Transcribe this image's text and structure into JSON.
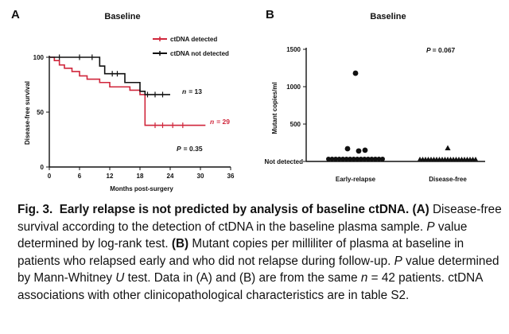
{
  "colors": {
    "detected": "#d0263b",
    "not_detected": "#111111"
  },
  "panelA": {
    "letter": "A",
    "title": "Baseline",
    "ylabel": "Disease-free survival",
    "xlabel": "Months post-surgery",
    "legend_detected": "ctDNA detected",
    "legend_not_detected": "ctDNA not detected",
    "n_not_detected_label": "n",
    "n_not_detected_value": "= 13",
    "n_detected_label": "n",
    "n_detected_value": "= 29",
    "p_label": "P",
    "p_value": "= 0.35"
  },
  "panelB": {
    "letter": "B",
    "title": "Baseline",
    "ylabel": "Mutant copies/ml",
    "p_label": "P",
    "p_value": "= 0.067",
    "not_detected_label": "Not detected"
  },
  "chart_data": [
    {
      "type": "line",
      "title": "Baseline",
      "xlabel": "Months post-surgery",
      "ylabel": "Disease-free survival",
      "xlim": [
        0,
        36
      ],
      "ylim": [
        0,
        100
      ],
      "xticks": [
        "0",
        "6",
        "12",
        "18",
        "24",
        "30",
        "36"
      ],
      "yticks": [
        "0",
        "50",
        "100"
      ],
      "series": [
        {
          "name": "ctDNA detected",
          "step_x": [
            0,
            1,
            2,
            3,
            4.5,
            6,
            7.5,
            10,
            12,
            16,
            18,
            19,
            20,
            31
          ],
          "step_y": [
            100,
            97,
            93,
            90,
            87,
            83,
            80,
            77,
            73,
            70,
            66,
            38,
            38,
            38
          ],
          "censored_x": [
            21,
            22.5,
            24.5,
            26.5
          ]
        },
        {
          "name": "ctDNA not detected",
          "step_x": [
            0,
            10,
            11,
            15,
            18,
            19,
            24
          ],
          "step_y": [
            100,
            92,
            85,
            77,
            69,
            66,
            66
          ],
          "censored_x": [
            2,
            6,
            8.5,
            12.5,
            13.5,
            19.5,
            21,
            22.5
          ]
        }
      ]
    },
    {
      "type": "scatter",
      "title": "Baseline",
      "ylabel": "Mutant copies/ml",
      "categories": [
        "Early-relapse",
        "Disease-free"
      ],
      "yticks": [
        "500",
        "1000",
        "1500"
      ],
      "ylim": [
        0,
        1500
      ],
      "series": [
        {
          "name": "Early-relapse",
          "values": [
            1180,
            170,
            140,
            150,
            0,
            0,
            0,
            0,
            0,
            0,
            0,
            0,
            0,
            0,
            0,
            0,
            0,
            0,
            0,
            0
          ]
        },
        {
          "name": "Disease-free",
          "values": [
            180,
            0,
            0,
            0,
            0,
            0,
            0,
            0,
            0,
            0,
            0,
            0,
            0,
            0,
            0,
            0,
            0,
            0,
            0,
            0,
            0,
            0
          ]
        }
      ]
    }
  ],
  "caption": {
    "fig_label": "Fig. 3.",
    "fig_title": "Early relapse is not predicted by analysis of baseline ctDNA.",
    "a_ref": "(A)",
    "text1": "Disease-free survival according to the detection of ctDNA in the baseline plasma sample.",
    "p1_label": "P",
    "text2": "value determined by log-rank test.",
    "b_ref": "(B)",
    "text3": "Mutant copies per milliliter of plasma at baseline in patients who relapsed early and who did not relapse during follow-up.",
    "p2_label": "P",
    "text4": "value determined by Mann-Whitney",
    "u_label": "U",
    "text5": "test. Data in (A) and (B) are from the same",
    "n_label": "n",
    "text6": "= 42 patients. ctDNA associations with other clinicopathological characteristics are in table S2."
  }
}
